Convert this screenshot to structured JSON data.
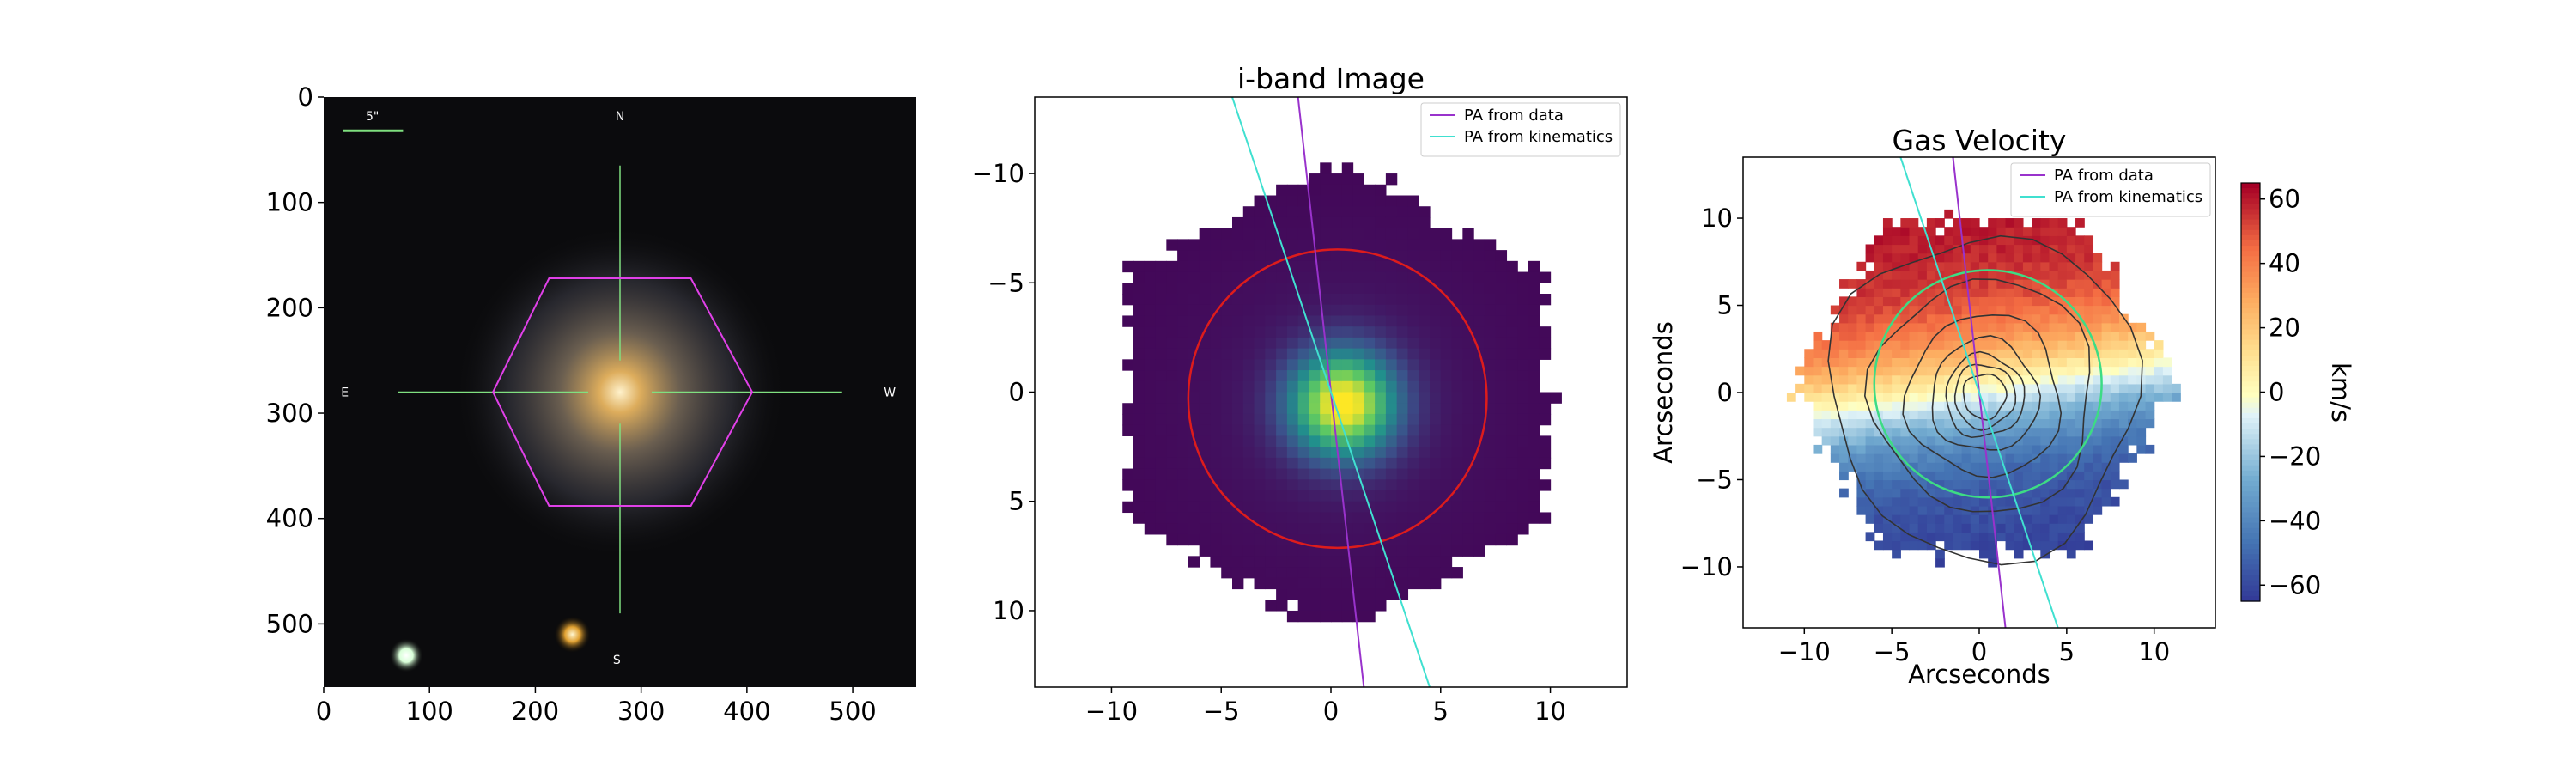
{
  "chart_data": [
    {
      "type": "image",
      "title": "",
      "xlim": [
        0,
        560
      ],
      "ylim": [
        560,
        0
      ],
      "xticks": [
        0,
        100,
        200,
        300,
        400,
        500
      ],
      "yticks": [
        0,
        100,
        200,
        300,
        400,
        500
      ],
      "center": [
        280,
        280
      ],
      "hexagon_vertices": [
        [
          160,
          280
        ],
        [
          213,
          172
        ],
        [
          347,
          172
        ],
        [
          405,
          280
        ],
        [
          347,
          388
        ],
        [
          213,
          388
        ]
      ],
      "crosshair": {
        "x_range": [
          70,
          490
        ],
        "y_range": [
          65,
          490
        ],
        "gap": 30
      },
      "compass": {
        "N": "N",
        "E": "E",
        "W": "W",
        "S": "S"
      },
      "scale_bar_label": "5\"",
      "stars": [
        {
          "x": 235,
          "y": 510
        },
        {
          "x": 78,
          "y": 530
        }
      ],
      "colors": {
        "hexagon": "#e040e8",
        "crosshair": "#80e080",
        "scale_bar": "#7fe07f"
      }
    },
    {
      "type": "heatmap",
      "title": "i-band Image",
      "xlabel": "",
      "ylabel": "",
      "xlim": [
        -13.5,
        13.5
      ],
      "ylim": [
        13.5,
        -13.5
      ],
      "xticks": [
        -10,
        -5,
        0,
        5,
        10
      ],
      "yticks": [
        -10,
        -5,
        0,
        5,
        10
      ],
      "colormap": "viridis",
      "peak": [
        0.3,
        0.3
      ],
      "circle_radius": 6.8,
      "legend": [
        {
          "label": "PA from data",
          "color": "#9932cc"
        },
        {
          "label": "PA from kinematics",
          "color": "#40e0d0"
        }
      ],
      "lines": [
        {
          "label": "PA from data",
          "color": "#9932cc",
          "points": [
            [
              -1.5,
              -13.5
            ],
            [
              1.5,
              13.5
            ]
          ]
        },
        {
          "label": "PA from kinematics",
          "color": "#40e0d0",
          "points": [
            [
              -4.5,
              -13.5
            ],
            [
              4.5,
              13.5
            ]
          ]
        }
      ],
      "circle_color": "#dd1c1c"
    },
    {
      "type": "heatmap",
      "title": "Gas Velocity",
      "xlabel": "Arcseconds",
      "ylabel": "Arcseconds",
      "xlim": [
        -13.5,
        13.5
      ],
      "ylim": [
        -13.5,
        13.5
      ],
      "xticks": [
        -10,
        -5,
        0,
        5,
        10
      ],
      "yticks": [
        10,
        5,
        0,
        -5,
        -10
      ],
      "colormap": "RdYlBu_r",
      "colorbar": {
        "label": "km/s",
        "range": [
          -65,
          65
        ],
        "ticks": [
          60,
          40,
          20,
          0,
          -20,
          -40,
          -60
        ]
      },
      "circle_radius": 6.5,
      "contour_levels": [
        1.2,
        1.7,
        2.2,
        3.0,
        4.3,
        6.2,
        8.6
      ],
      "legend": [
        {
          "label": "PA from data",
          "color": "#9932cc"
        },
        {
          "label": "PA from kinematics",
          "color": "#40e0d0"
        }
      ],
      "lines": [
        {
          "label": "PA from data",
          "color": "#9932cc",
          "points": [
            [
              -1.5,
              13.5
            ],
            [
              1.5,
              -13.5
            ]
          ]
        },
        {
          "label": "PA from kinematics",
          "color": "#40e0d0",
          "points": [
            [
              -4.5,
              13.5
            ],
            [
              4.5,
              -13.5
            ]
          ]
        }
      ],
      "circle_color": "#3ddc84"
    }
  ]
}
